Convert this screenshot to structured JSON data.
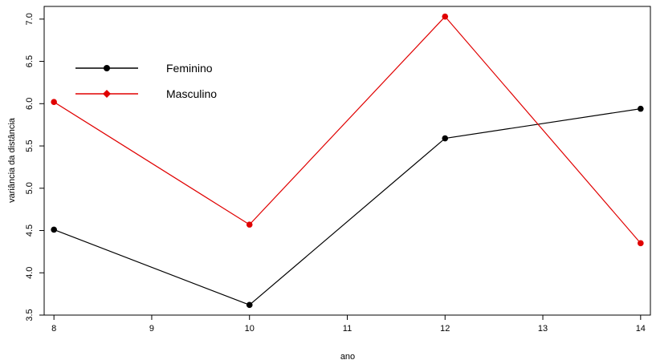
{
  "chart_data": {
    "type": "line",
    "x": [
      8,
      10,
      12,
      14
    ],
    "xlabel": "ano",
    "ylabel": "variância da distância",
    "xlim": [
      7.9,
      14.1
    ],
    "ylim": [
      3.5,
      7.15
    ],
    "xticks": [
      8,
      9,
      10,
      11,
      12,
      13,
      14
    ],
    "yticks": [
      3.5,
      4.0,
      4.5,
      5.0,
      5.5,
      6.0,
      6.5,
      7.0
    ],
    "ytick_labels": [
      "3.5",
      "4.0",
      "4.5",
      "5.0",
      "5.5",
      "6.0",
      "6.5",
      "7.0"
    ],
    "legend_position": "top-left",
    "grid": false,
    "series": [
      {
        "name": "Feminino",
        "color": "#000000",
        "marker": "circle",
        "values": [
          4.51,
          3.62,
          5.59,
          5.94
        ]
      },
      {
        "name": "Masculino",
        "color": "#e00000",
        "marker": "diamond",
        "values": [
          6.02,
          4.57,
          7.03,
          4.35
        ]
      }
    ]
  }
}
